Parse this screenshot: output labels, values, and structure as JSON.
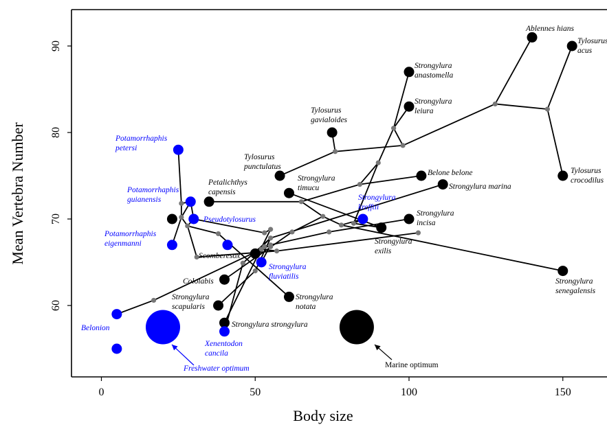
{
  "chart_data": {
    "type": "scatter",
    "xlabel": "Body size",
    "ylabel": "Mean Vertebra Number",
    "xlim": [
      -10,
      165
    ],
    "ylim": [
      52,
      96
    ],
    "xticks": [
      0,
      50,
      100,
      150
    ],
    "yticks": [
      60,
      70,
      80,
      90
    ],
    "colors": {
      "marine": "#000000",
      "freshwater": "#0000ff",
      "node": "#777777",
      "branch": "#000000"
    },
    "species": [
      {
        "label": "Ablennes hians",
        "x": 140,
        "y": 91,
        "habitat": "marine"
      },
      {
        "label": "Tylosurus acus",
        "x": 153,
        "y": 90,
        "habitat": "marine"
      },
      {
        "label": "Strongylura anastomella",
        "x": 100,
        "y": 87,
        "habitat": "marine"
      },
      {
        "label": "Strongylura leiura",
        "x": 100,
        "y": 83,
        "habitat": "marine"
      },
      {
        "label": "Tylosurus gavialoides",
        "x": 75,
        "y": 80,
        "habitat": "marine"
      },
      {
        "label": "Tylosurus punctulatus",
        "x": 58,
        "y": 75,
        "habitat": "marine"
      },
      {
        "label": "Belone belone",
        "x": 104,
        "y": 75,
        "habitat": "marine"
      },
      {
        "label": "Tylosurus crocodilus",
        "x": 150,
        "y": 75,
        "habitat": "marine"
      },
      {
        "label": "Strongylura marina",
        "x": 111,
        "y": 74,
        "habitat": "marine"
      },
      {
        "label": "Strongylura timucu",
        "x": 61,
        "y": 73,
        "habitat": "marine"
      },
      {
        "label": "Petalichthys capensis",
        "x": 35,
        "y": 72,
        "habitat": "marine"
      },
      {
        "label": "",
        "x": 23,
        "y": 70,
        "habitat": "marine"
      },
      {
        "label": "Strongylura incisa",
        "x": 100,
        "y": 70,
        "habitat": "marine"
      },
      {
        "label": "Strongylura exilis",
        "x": 91,
        "y": 69,
        "habitat": "marine"
      },
      {
        "label": "Scomberesox",
        "x": 50,
        "y": 66,
        "habitat": "marine"
      },
      {
        "label": "Strongylura senegalensis",
        "x": 150,
        "y": 64,
        "habitat": "marine"
      },
      {
        "label": "Cololabis",
        "x": 40,
        "y": 63,
        "habitat": "marine"
      },
      {
        "label": "Strongylura notata",
        "x": 61,
        "y": 61,
        "habitat": "marine"
      },
      {
        "label": "Strongylura scapularis",
        "x": 38,
        "y": 60,
        "habitat": "marine"
      },
      {
        "label": "Strongylura strongylura",
        "x": 40,
        "y": 58,
        "habitat": "marine"
      },
      {
        "label": "Potamorrhaphis petersi",
        "x": 25,
        "y": 78,
        "habitat": "freshwater"
      },
      {
        "label": "Potamorrhaphis guianensis",
        "x": 29,
        "y": 72,
        "habitat": "freshwater"
      },
      {
        "label": "Pseudotylosurus",
        "x": 30,
        "y": 70,
        "habitat": "freshwater"
      },
      {
        "label": "Strongylura krefftii",
        "x": 85,
        "y": 70,
        "habitat": "freshwater"
      },
      {
        "label": "Potamorrhaphis eigenmanni",
        "x": 23,
        "y": 67,
        "habitat": "freshwater"
      },
      {
        "label": "",
        "x": 41,
        "y": 67,
        "habitat": "freshwater"
      },
      {
        "label": "Strongylura fluviatilis",
        "x": 52,
        "y": 65,
        "habitat": "freshwater"
      },
      {
        "label": "Belonion",
        "x": 5,
        "y": 59,
        "habitat": "freshwater"
      },
      {
        "label": "",
        "x": 5,
        "y": 55,
        "habitat": "freshwater"
      },
      {
        "label": "Xenentodon cancila",
        "x": 40,
        "y": 57,
        "habitat": "freshwater"
      }
    ],
    "nodes": [
      {
        "id": "N1",
        "x": 128,
        "y": 83.3
      },
      {
        "id": "N2",
        "x": 145,
        "y": 82.7
      },
      {
        "id": "N3",
        "x": 98,
        "y": 78.5
      },
      {
        "id": "N4",
        "x": 76,
        "y": 77.8
      },
      {
        "id": "N5",
        "x": 95,
        "y": 80.5
      },
      {
        "id": "N6",
        "x": 90,
        "y": 76.5
      },
      {
        "id": "N7",
        "x": 84,
        "y": 74
      },
      {
        "id": "N8",
        "x": 65,
        "y": 72
      },
      {
        "id": "N9",
        "x": 72,
        "y": 70.3
      },
      {
        "id": "N10",
        "x": 62,
        "y": 68.5
      },
      {
        "id": "N11",
        "x": 26,
        "y": 71.8
      },
      {
        "id": "N12",
        "x": 26,
        "y": 70.2
      },
      {
        "id": "N13",
        "x": 28,
        "y": 69.2
      },
      {
        "id": "N14",
        "x": 38,
        "y": 68.3
      },
      {
        "id": "N15",
        "x": 55,
        "y": 68.8
      },
      {
        "id": "N16",
        "x": 53,
        "y": 68.4
      },
      {
        "id": "N17",
        "x": 78,
        "y": 69.3
      },
      {
        "id": "N18",
        "x": 82,
        "y": 69.5
      },
      {
        "id": "N19",
        "x": 103,
        "y": 68.4
      },
      {
        "id": "N20",
        "x": 74,
        "y": 68.5
      },
      {
        "id": "N21",
        "x": 55,
        "y": 67.8
      },
      {
        "id": "N22",
        "x": 52,
        "y": 66.5
      },
      {
        "id": "N23",
        "x": 53,
        "y": 66.8
      },
      {
        "id": "N24",
        "x": 55,
        "y": 66.8
      },
      {
        "id": "N25",
        "x": 55,
        "y": 67
      },
      {
        "id": "N26",
        "x": 57,
        "y": 66.3
      },
      {
        "id": "N27",
        "x": 31,
        "y": 65.6
      },
      {
        "id": "N28",
        "x": 46,
        "y": 64.9
      },
      {
        "id": "N29",
        "x": 50,
        "y": 64
      },
      {
        "id": "N30",
        "x": 17,
        "y": 60.6
      }
    ],
    "branches": [
      [
        "Ablennes hians",
        "N1"
      ],
      [
        "N1",
        "N2"
      ],
      [
        "N2",
        "Tylosurus acus"
      ],
      [
        "N2",
        "Tylosurus crocodilus"
      ],
      [
        "N1",
        "N3"
      ],
      [
        "N3",
        "N4"
      ],
      [
        "N4",
        "Tylosurus gavialoides"
      ],
      [
        "N4",
        "Tylosurus punctulatus"
      ],
      [
        "N3",
        "N5"
      ],
      [
        "N5",
        "Strongylura anastomella"
      ],
      [
        "N5",
        "Strongylura leiura"
      ],
      [
        "N5",
        "N6"
      ],
      [
        "N6",
        "N7"
      ],
      [
        "N7",
        "Belone belone"
      ],
      [
        "N7",
        "N8"
      ],
      [
        "N8",
        "Petalichthys capensis"
      ],
      [
        "N8",
        "N9"
      ],
      [
        "N9",
        "N10"
      ],
      [
        "N10",
        "Cololabis"
      ],
      [
        "Strongylura timucu",
        "Strongylura exilis"
      ],
      [
        "N11",
        "Potamorrhaphis petersi"
      ],
      [
        "N11",
        "Potamorrhaphis guianensis"
      ],
      [
        "N11",
        "N12"
      ],
      [
        "N12",
        "Potamorrhaphis eigenmanni"
      ],
      [
        "N12",
        "N13"
      ],
      [
        "N13",
        "Pseudotylosurus"
      ],
      [
        "N13",
        "N27"
      ],
      [
        "N13",
        "N14"
      ],
      [
        "N14",
        "Strongylura notata"
      ],
      [
        "Pseudotylosurus",
        "N16"
      ],
      [
        "N16",
        "N15"
      ],
      [
        "N15",
        "Strongylura strongylura"
      ],
      [
        "Potamorrhaphis guianensis",
        "Pseudotylosurus"
      ],
      [
        "N12",
        "Potamorrhaphis guianensis"
      ],
      [
        "Strongylura incisa",
        "N20"
      ],
      [
        "N20",
        "N25"
      ],
      [
        "N25",
        "N24"
      ],
      [
        "N24",
        "N23"
      ],
      [
        "N23",
        "N22"
      ],
      [
        "N22",
        "Scomberesox"
      ],
      [
        "N25",
        "Strongylura fluviatilis"
      ],
      [
        "Strongylura senegalensis",
        "N17"
      ],
      [
        "N17",
        "N9"
      ],
      [
        "N17",
        "Strongylura krefftii"
      ],
      [
        "Strongylura krefftii",
        "N18"
      ],
      [
        "N18",
        "N6"
      ],
      [
        "N18",
        "Strongylura exilis"
      ],
      [
        "Strongylura marina",
        "N21"
      ],
      [
        "N21",
        "N29"
      ],
      [
        "N29",
        "Strongylura scapularis"
      ],
      [
        "N21",
        "N28"
      ],
      [
        "N28",
        "Xenentodon cancila"
      ],
      [
        "N19",
        "N26"
      ],
      [
        "N26",
        "N22"
      ],
      [
        "N22",
        "N30"
      ],
      [
        "N30",
        "Belonion"
      ],
      [
        "N30",
        "N31"
      ],
      [
        "N27",
        "N26"
      ],
      [
        "Scomberesox",
        "N21"
      ]
    ],
    "optima": [
      {
        "label": "Freshwater optimum",
        "x": 20,
        "y": 57.5,
        "habitat": "freshwater"
      },
      {
        "label": "Marine optimum",
        "x": 83,
        "y": 57.5,
        "habitat": "marine"
      }
    ]
  }
}
